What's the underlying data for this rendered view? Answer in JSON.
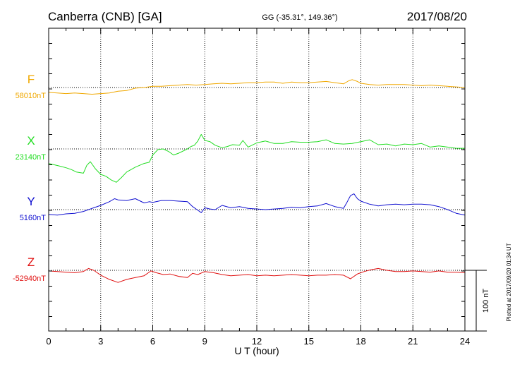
{
  "header": {
    "station": "Canberra (CNB)  [GA]",
    "coords": "GG (-35.31°, 149.36°)",
    "date": "2017/08/20"
  },
  "chart_data": {
    "type": "line",
    "xlabel": "U T (hour)",
    "xlim": [
      0,
      24
    ],
    "xticks": [
      0,
      3,
      6,
      9,
      12,
      15,
      18,
      21,
      24
    ],
    "scale_bar": "100 nT",
    "footnote": "Plotted at 2017/09/20 01:34 UT",
    "series": [
      {
        "name": "F",
        "baseline_label": "58010nT",
        "color": "#f0a800",
        "offset_nT": 0,
        "x": [
          0,
          0.5,
          1,
          1.5,
          2,
          2.5,
          3,
          3.5,
          4,
          4.5,
          5,
          5.5,
          6,
          6.5,
          7,
          7.5,
          8,
          8.5,
          9,
          9.5,
          10,
          10.5,
          11,
          11.5,
          12,
          12.5,
          13,
          13.5,
          14,
          14.5,
          15,
          15.5,
          16,
          16.5,
          17,
          17.3,
          17.5,
          17.8,
          18,
          18.5,
          19,
          19.5,
          20,
          20.5,
          21,
          21.5,
          22,
          22.5,
          23,
          23.5,
          24
        ],
        "values": [
          -8,
          -9,
          -10,
          -9,
          -10,
          -11,
          -10,
          -9,
          -6,
          -5,
          -1,
          0,
          2,
          2,
          3,
          4,
          5,
          4,
          5,
          6,
          7,
          6,
          7,
          8,
          8,
          9,
          9,
          7,
          9,
          8,
          8,
          9,
          10,
          8,
          6,
          11,
          13,
          10,
          7,
          5,
          4,
          5,
          5,
          5,
          4,
          3,
          4,
          3,
          2,
          1,
          0
        ]
      },
      {
        "name": "X",
        "baseline_label": "23140nT",
        "color": "#22dd22",
        "offset_nT": 0,
        "x": [
          0,
          0.3,
          0.6,
          1,
          1.3,
          1.6,
          2,
          2.2,
          2.4,
          2.5,
          2.7,
          3,
          3.3,
          3.6,
          3.9,
          4.2,
          4.5,
          5,
          5.5,
          5.8,
          6,
          6.3,
          6.6,
          6.9,
          7.2,
          7.5,
          8,
          8.2,
          8.4,
          8.6,
          8.8,
          9,
          9.3,
          9.6,
          10,
          10.3,
          10.6,
          11,
          11.2,
          11.5,
          12,
          12.5,
          13,
          13.5,
          14,
          14.5,
          15,
          15.5,
          16,
          16.5,
          17,
          17.5,
          18,
          18.5,
          19,
          19.5,
          20,
          20.5,
          21,
          21.5,
          22,
          22.5,
          23,
          23.5,
          24
        ],
        "values": [
          -24,
          -26,
          -28,
          -31,
          -34,
          -38,
          -40,
          -27,
          -21,
          -25,
          -33,
          -42,
          -45,
          -51,
          -55,
          -47,
          -38,
          -30,
          -24,
          -22,
          -10,
          -1,
          0,
          -4,
          -10,
          -7,
          0,
          4,
          6,
          13,
          24,
          14,
          12,
          6,
          2,
          4,
          7,
          6,
          14,
          3,
          10,
          13,
          9,
          9,
          12,
          11,
          11,
          12,
          15,
          9,
          8,
          9,
          12,
          15,
          7,
          8,
          5,
          8,
          7,
          9,
          3,
          5,
          3,
          1,
          1
        ]
      },
      {
        "name": "Y",
        "baseline_label": "5160nT",
        "color": "#1010d0",
        "offset_nT": 0,
        "x": [
          0,
          0.5,
          1,
          1.5,
          2,
          2.3,
          2.6,
          3,
          3.5,
          3.8,
          4,
          4.5,
          5,
          5.5,
          5.8,
          6,
          6.5,
          7,
          7.5,
          8,
          8.3,
          8.6,
          8.8,
          9,
          9.3,
          9.6,
          10,
          10.5,
          11,
          11.5,
          12,
          12.5,
          13,
          13.5,
          14,
          14.5,
          15,
          15.5,
          16,
          16.5,
          17,
          17.2,
          17.4,
          17.6,
          17.8,
          18,
          18.5,
          19,
          19.5,
          20,
          20.5,
          21,
          21.5,
          22,
          22.5,
          23,
          23.5,
          24
        ],
        "values": [
          -8,
          -9,
          -7,
          -6,
          -3,
          0,
          3,
          7,
          13,
          18,
          16,
          15,
          18,
          11,
          13,
          12,
          15,
          15,
          14,
          13,
          5,
          -1,
          -5,
          3,
          1,
          0,
          7,
          3,
          5,
          2,
          1,
          0,
          1,
          2,
          4,
          3,
          5,
          6,
          10,
          5,
          2,
          12,
          23,
          26,
          18,
          14,
          9,
          6,
          8,
          9,
          8,
          9,
          9,
          8,
          5,
          0,
          -6,
          -9
        ]
      },
      {
        "name": "Z",
        "baseline_label": "-52940nT",
        "color": "#e01010",
        "offset_nT": 0,
        "x": [
          0,
          0.5,
          1,
          1.5,
          2,
          2.3,
          2.6,
          3,
          3.5,
          4,
          4.5,
          5,
          5.5,
          5.9,
          6.2,
          6.6,
          7,
          7.5,
          8,
          8.3,
          8.6,
          9,
          9.5,
          10,
          10.5,
          11,
          11.5,
          12,
          12.5,
          13,
          13.5,
          14,
          14.5,
          15,
          15.5,
          16,
          16.5,
          17,
          17.4,
          17.8,
          18.2,
          18.6,
          19,
          19.5,
          20,
          20.5,
          21,
          21.5,
          22,
          22.5,
          23,
          23.5,
          24
        ],
        "values": [
          -1,
          -2,
          -3,
          -4,
          -2,
          3,
          0,
          -8,
          -15,
          -20,
          -15,
          -12,
          -9,
          -1,
          -4,
          -7,
          -6,
          -10,
          -12,
          -5,
          -7,
          -2,
          -4,
          -7,
          -9,
          -8,
          -7,
          -9,
          -8,
          -9,
          -8,
          -7,
          -8,
          -9,
          -8,
          -8,
          -7,
          -8,
          -14,
          -6,
          -2,
          1,
          3,
          0,
          -2,
          -2,
          -1,
          -2,
          -3,
          -1,
          -3,
          -3,
          -4
        ]
      }
    ]
  }
}
